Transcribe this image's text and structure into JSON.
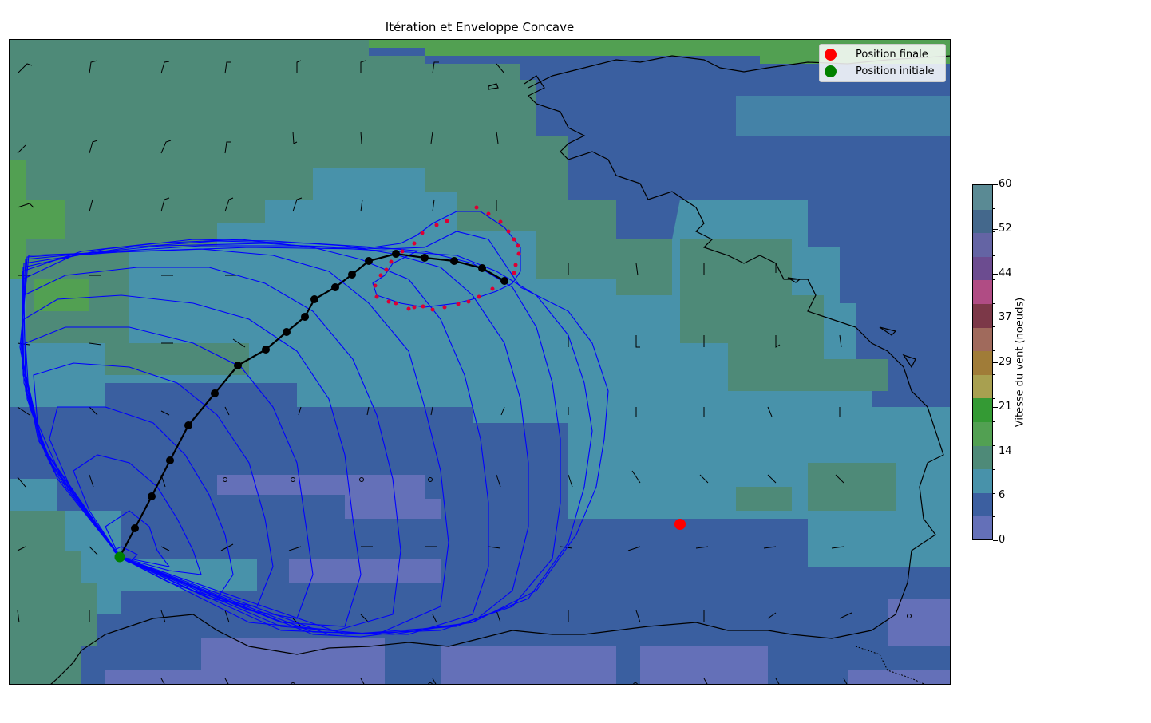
{
  "title": "Itération et Enveloppe Concave",
  "legend": [
    {
      "label": "Position finale",
      "color": "#ff0000"
    },
    {
      "label": "Position initiale",
      "color": "#008000"
    }
  ],
  "colorbar": {
    "label": "Vitesse du vent (noeuds)",
    "ticks": [
      "0",
      "6",
      "14",
      "21",
      "29",
      "37",
      "44",
      "52",
      "60"
    ],
    "colors": [
      "#6470b8",
      "#3c5fa0",
      "#4892aa",
      "#4e8a78",
      "#52a052",
      "#349a34",
      "#a8a050",
      "#a07c38",
      "#a06a5c",
      "#7c3848",
      "#b04c84",
      "#6c4c90",
      "#6464a4",
      "#44688c",
      "#5a8a94"
    ]
  },
  "markers": {
    "final_color": "#ff0000",
    "initial_color": "#008000",
    "route_color": "#000000",
    "isochrone_color": "#0000ff",
    "envelope_point_color": "#dd0033"
  }
}
